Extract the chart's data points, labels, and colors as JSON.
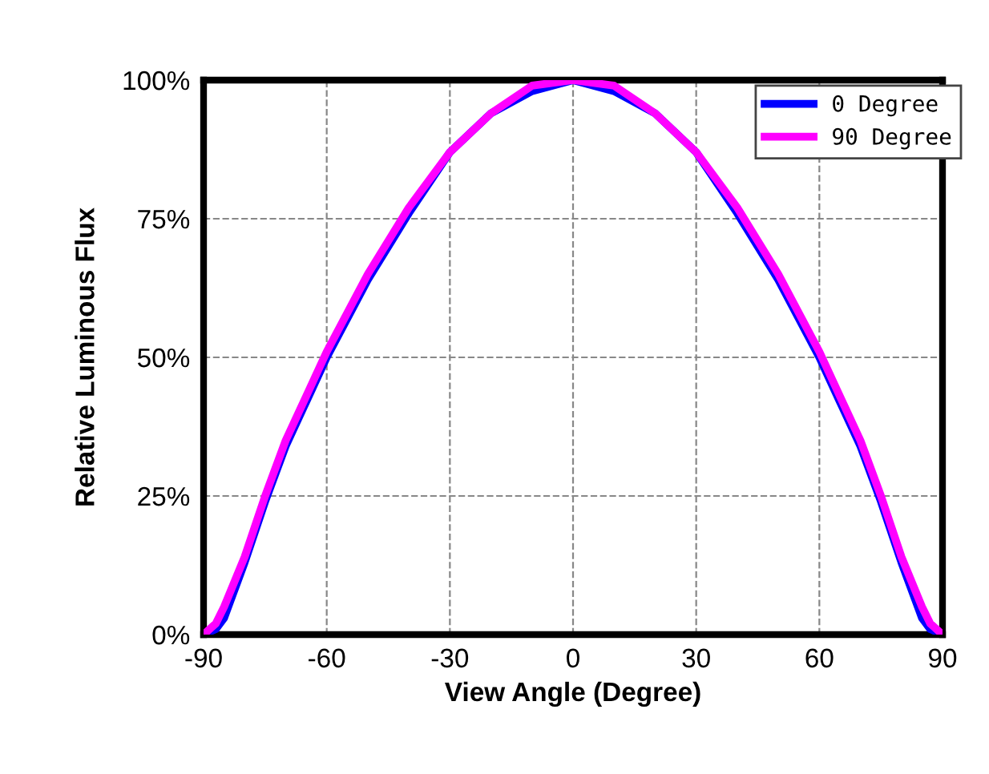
{
  "chart_data": {
    "type": "line",
    "xlabel": "View Angle (Degree)",
    "ylabel": "Relative Luminous Flux",
    "x": [
      -90,
      -87,
      -85,
      -80,
      -75,
      -70,
      -65,
      -60,
      -50,
      -40,
      -30,
      -20,
      -10,
      0,
      10,
      20,
      30,
      40,
      50,
      60,
      65,
      70,
      75,
      80,
      85,
      87,
      90
    ],
    "series": [
      {
        "name": "0 Degree",
        "color": "#0000ff",
        "values": [
          0,
          1,
          3,
          13,
          24,
          34,
          42,
          50,
          64,
          76,
          87,
          94,
          98,
          100,
          98,
          94,
          87,
          76,
          64,
          50,
          42,
          34,
          24,
          13,
          3,
          1,
          0
        ]
      },
      {
        "name": "90 Degree",
        "color": "#ff00ff",
        "values": [
          0,
          2,
          5,
          14,
          25,
          35,
          43,
          51,
          65,
          77,
          87,
          94,
          99,
          100,
          99,
          94,
          87,
          77,
          65,
          51,
          43,
          35,
          25,
          14,
          5,
          2,
          0
        ]
      }
    ],
    "xlim": [
      -90,
      90
    ],
    "xticks": [
      -90,
      -60,
      -30,
      0,
      30,
      60,
      90
    ],
    "ylim": [
      0,
      100
    ],
    "yticks": [
      {
        "value": 0,
        "label": "0%"
      },
      {
        "value": 25,
        "label": "25%"
      },
      {
        "value": 50,
        "label": "50%"
      },
      {
        "value": 75,
        "label": "75%"
      },
      {
        "value": 100,
        "label": "100%"
      }
    ],
    "grid": true,
    "legend": "top right",
    "line_style": "solid",
    "marker": "none"
  }
}
